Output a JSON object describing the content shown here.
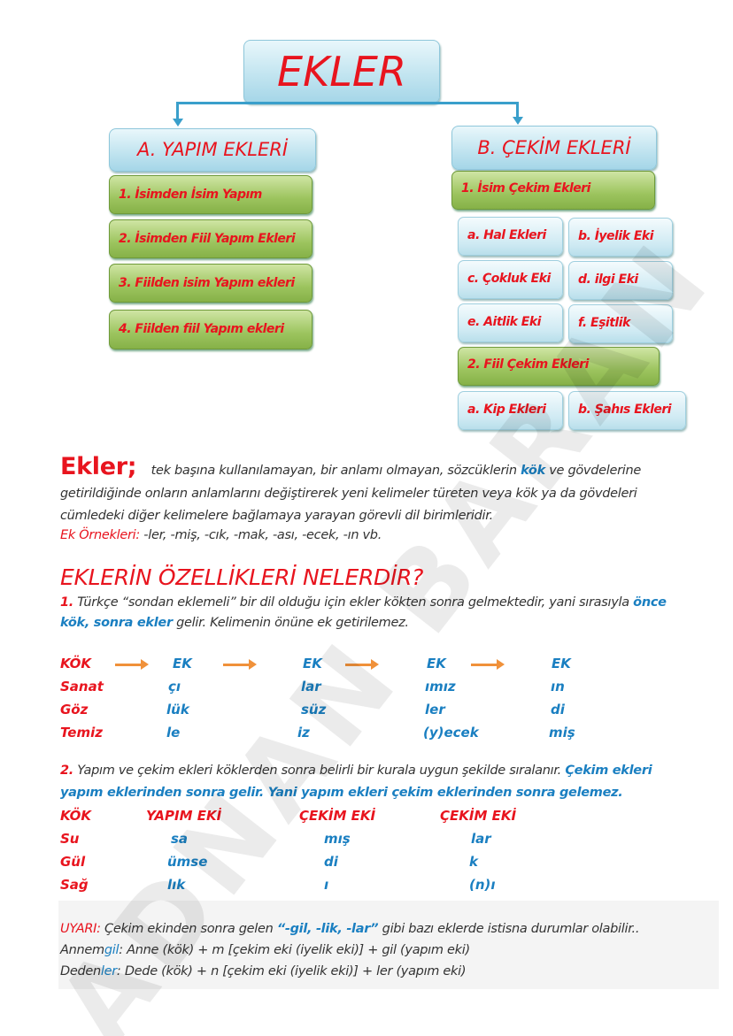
{
  "diagram": {
    "root": "EKLER",
    "left": {
      "title": "A. YAPIM EKLERİ",
      "items": [
        "1. İsimden İsim Yapım",
        "2. İsimden Fiil Yapım Ekleri",
        "3. Fiilden isim Yapım ekleri",
        "4. Fiilden fiil Yapım ekleri"
      ]
    },
    "right": {
      "title": "B. ÇEKİM EKLERİ",
      "group1": "1. İsim Çekim Ekleri",
      "group1_items": [
        "a. Hal Ekleri",
        "b. İyelik Eki",
        "c. Çokluk Eki",
        "d. ilgi Eki",
        "e. Aitlik Eki",
        "f. Eşitlik"
      ],
      "group2": "2. Fiil Çekim Ekleri",
      "group2_items": [
        "a. Kip Ekleri",
        "b. Şahıs Ekleri"
      ]
    }
  },
  "definition": {
    "term": "Ekler;",
    "line1_a": "tek başına kullanılamayan, bir anlamı olmayan, sözcüklerin ",
    "line1_kok": "kök",
    "line1_b": " ve gövdelerine",
    "line2": "getirildiğinde onların anlamlarını değiştirerek yeni kelimeler türeten veya kök ya da gövdeleri",
    "line3": "cümledeki diğer kelimelere bağlamaya yarayan görevli dil birimleridir.",
    "examples_label": "Ek Örnekleri:",
    "examples": " -ler, -miş, -cık, -mak, -ası, -ecek, -ın vb."
  },
  "heading": "EKLERİN ÖZELLİKLERİ NELERDİR?",
  "point1": {
    "num": "1.",
    "text_a": " Türkçe “sondan eklemeli” bir dil olduğu için ekler kökten sonra gelmektedir, yani sırasıyla ",
    "hl1": "önce",
    "hl2": "kök, sonra ekler",
    "text_b": " gelir. Kelimenin önüne ek getirilemez."
  },
  "table1": {
    "header": [
      "KÖK",
      "EK",
      "EK",
      "EK",
      "EK"
    ],
    "rows": [
      [
        "Sanat",
        "çı",
        "lar",
        "ımız",
        "ın"
      ],
      [
        "Göz",
        "lük",
        "süz",
        "ler",
        "di"
      ],
      [
        "Temiz",
        "le",
        "iz",
        "(y)ecek",
        "miş"
      ]
    ]
  },
  "point2": {
    "num": "2.",
    "text": " Yapım ve çekim ekleri köklerden sonra belirli bir kurala uygun şekilde sıralanır. ",
    "hl_a": "Çekim ekleri",
    "hl_b": "yapım eklerinden sonra gelir. Yani yapım ekleri çekim eklerinden sonra gelemez."
  },
  "table2": {
    "header": [
      "KÖK",
      "YAPIM EKİ",
      "ÇEKİM EKİ",
      "ÇEKİM EKİ"
    ],
    "rows": [
      [
        "Su",
        "sa",
        "mış",
        "lar"
      ],
      [
        "Gül",
        "ümse",
        "di",
        "k"
      ],
      [
        "Sağ",
        "lık",
        "ı",
        "(n)ı"
      ]
    ]
  },
  "warning": {
    "label": "UYARI:",
    "text_a": " Çekim ekinden sonra gelen ",
    "hl": "“-gil, -lik, -lar”",
    "text_b": " gibi bazı eklerde istisna durumlar olabilir..",
    "ex1_a": "Annem",
    "ex1_hl": "gil",
    "ex1_b": ": Anne (kök) + m [çekim eki (iyelik eki)] + gil (yapım eki)",
    "ex2_a": "Deden",
    "ex2_hl": "ler",
    "ex2_b": ": Dede (kök) + n [çekim eki (iyelik eki)] + ler (yapım eki)"
  },
  "watermark": "ADNAN BARAN",
  "colors": {
    "red": "#e8141e",
    "blue": "#1a7fc1",
    "arrow": "#f0913a",
    "green_box": "#9cc45e",
    "blue_box": "#bfe3ef"
  }
}
